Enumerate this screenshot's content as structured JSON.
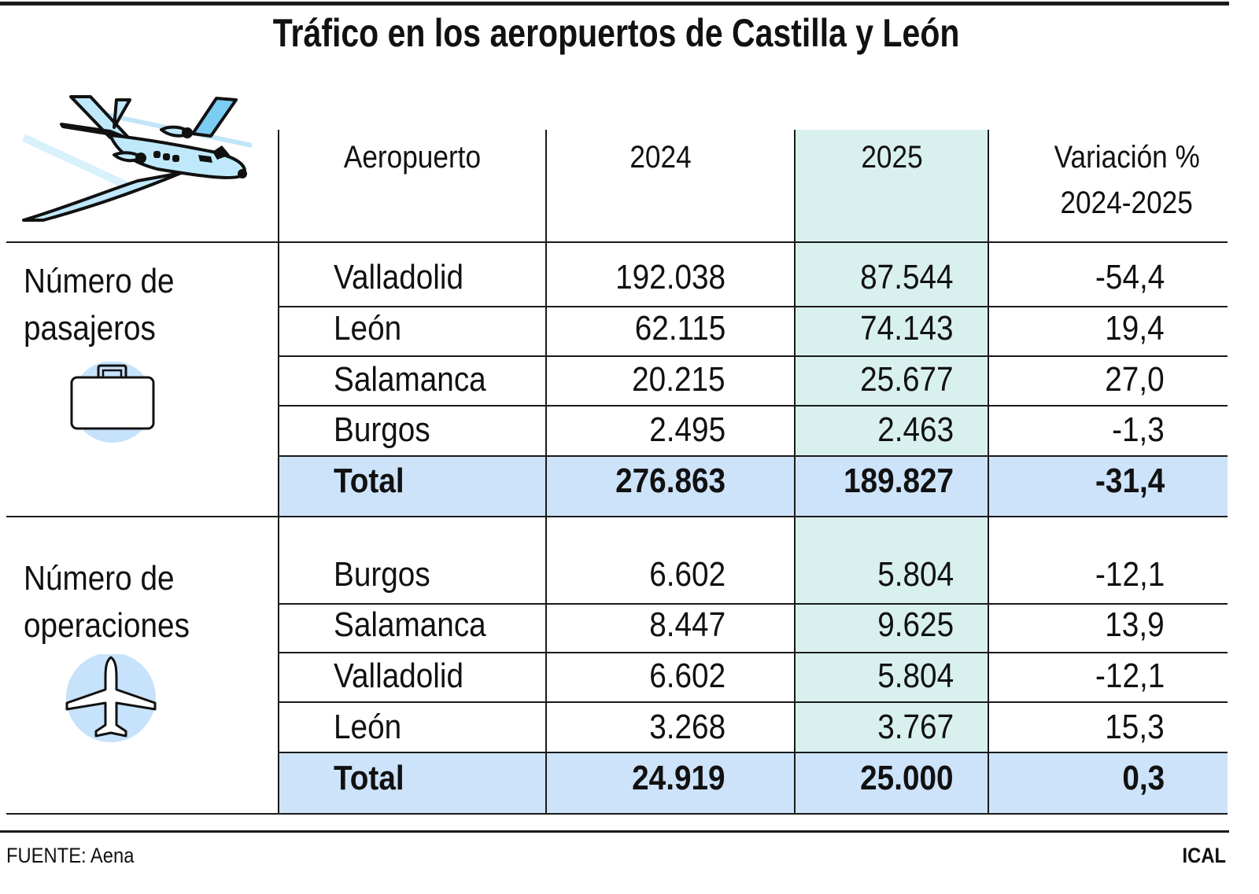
{
  "title": "Tráfico en los aeropuertos de Castilla y León",
  "colors": {
    "col2025": "#d9f1ee",
    "total_row": "#cde3fa",
    "icon_circle": "#c7e2fb",
    "plane_fill": "#bfe9fb"
  },
  "icons": [
    "airplane-icon",
    "briefcase-icon",
    "airplane-topview-icon"
  ],
  "chart_data": {
    "type": "table",
    "title": "Tráfico en los aeropuertos de Castilla y León",
    "columns": [
      "Aeropuerto",
      "2024",
      "2025",
      "Variación % 2024-2025"
    ],
    "header": {
      "airport": "Aeropuerto",
      "y2024": "2024",
      "y2025": "2025",
      "var_line1": "Variación %",
      "var_line2": "2024-2025"
    },
    "sections": [
      {
        "label_line1": "Número de",
        "label_line2": "pasajeros",
        "rows": [
          {
            "airport": "Valladolid",
            "y2024": "192.038",
            "y2025": "87.544",
            "var": "-54,4"
          },
          {
            "airport": "León",
            "y2024": "62.115",
            "y2025": "74.143",
            "var": "19,4"
          },
          {
            "airport": "Salamanca",
            "y2024": "20.215",
            "y2025": "25.677",
            "var": "27,0"
          },
          {
            "airport": "Burgos",
            "y2024": "2.495",
            "y2025": "2.463",
            "var": "-1,3"
          }
        ],
        "total": {
          "airport": "Total",
          "y2024": "276.863",
          "y2025": "189.827",
          "var": "-31,4"
        }
      },
      {
        "label_line1": "Número de",
        "label_line2": "operaciones",
        "rows": [
          {
            "airport": "Burgos",
            "y2024": "6.602",
            "y2025": "5.804",
            "var": "-12,1"
          },
          {
            "airport": "Salamanca",
            "y2024": "8.447",
            "y2025": "9.625",
            "var": "13,9"
          },
          {
            "airport": "Valladolid",
            "y2024": "6.602",
            "y2025": "5.804",
            "var": "-12,1"
          },
          {
            "airport": "León",
            "y2024": "3.268",
            "y2025": "3.767",
            "var": "15,3"
          }
        ],
        "total": {
          "airport": "Total",
          "y2024": "24.919",
          "y2025": "25.000",
          "var": "0,3"
        }
      }
    ]
  },
  "footer": {
    "source": "FUENTE: Aena",
    "credit": "ICAL"
  }
}
